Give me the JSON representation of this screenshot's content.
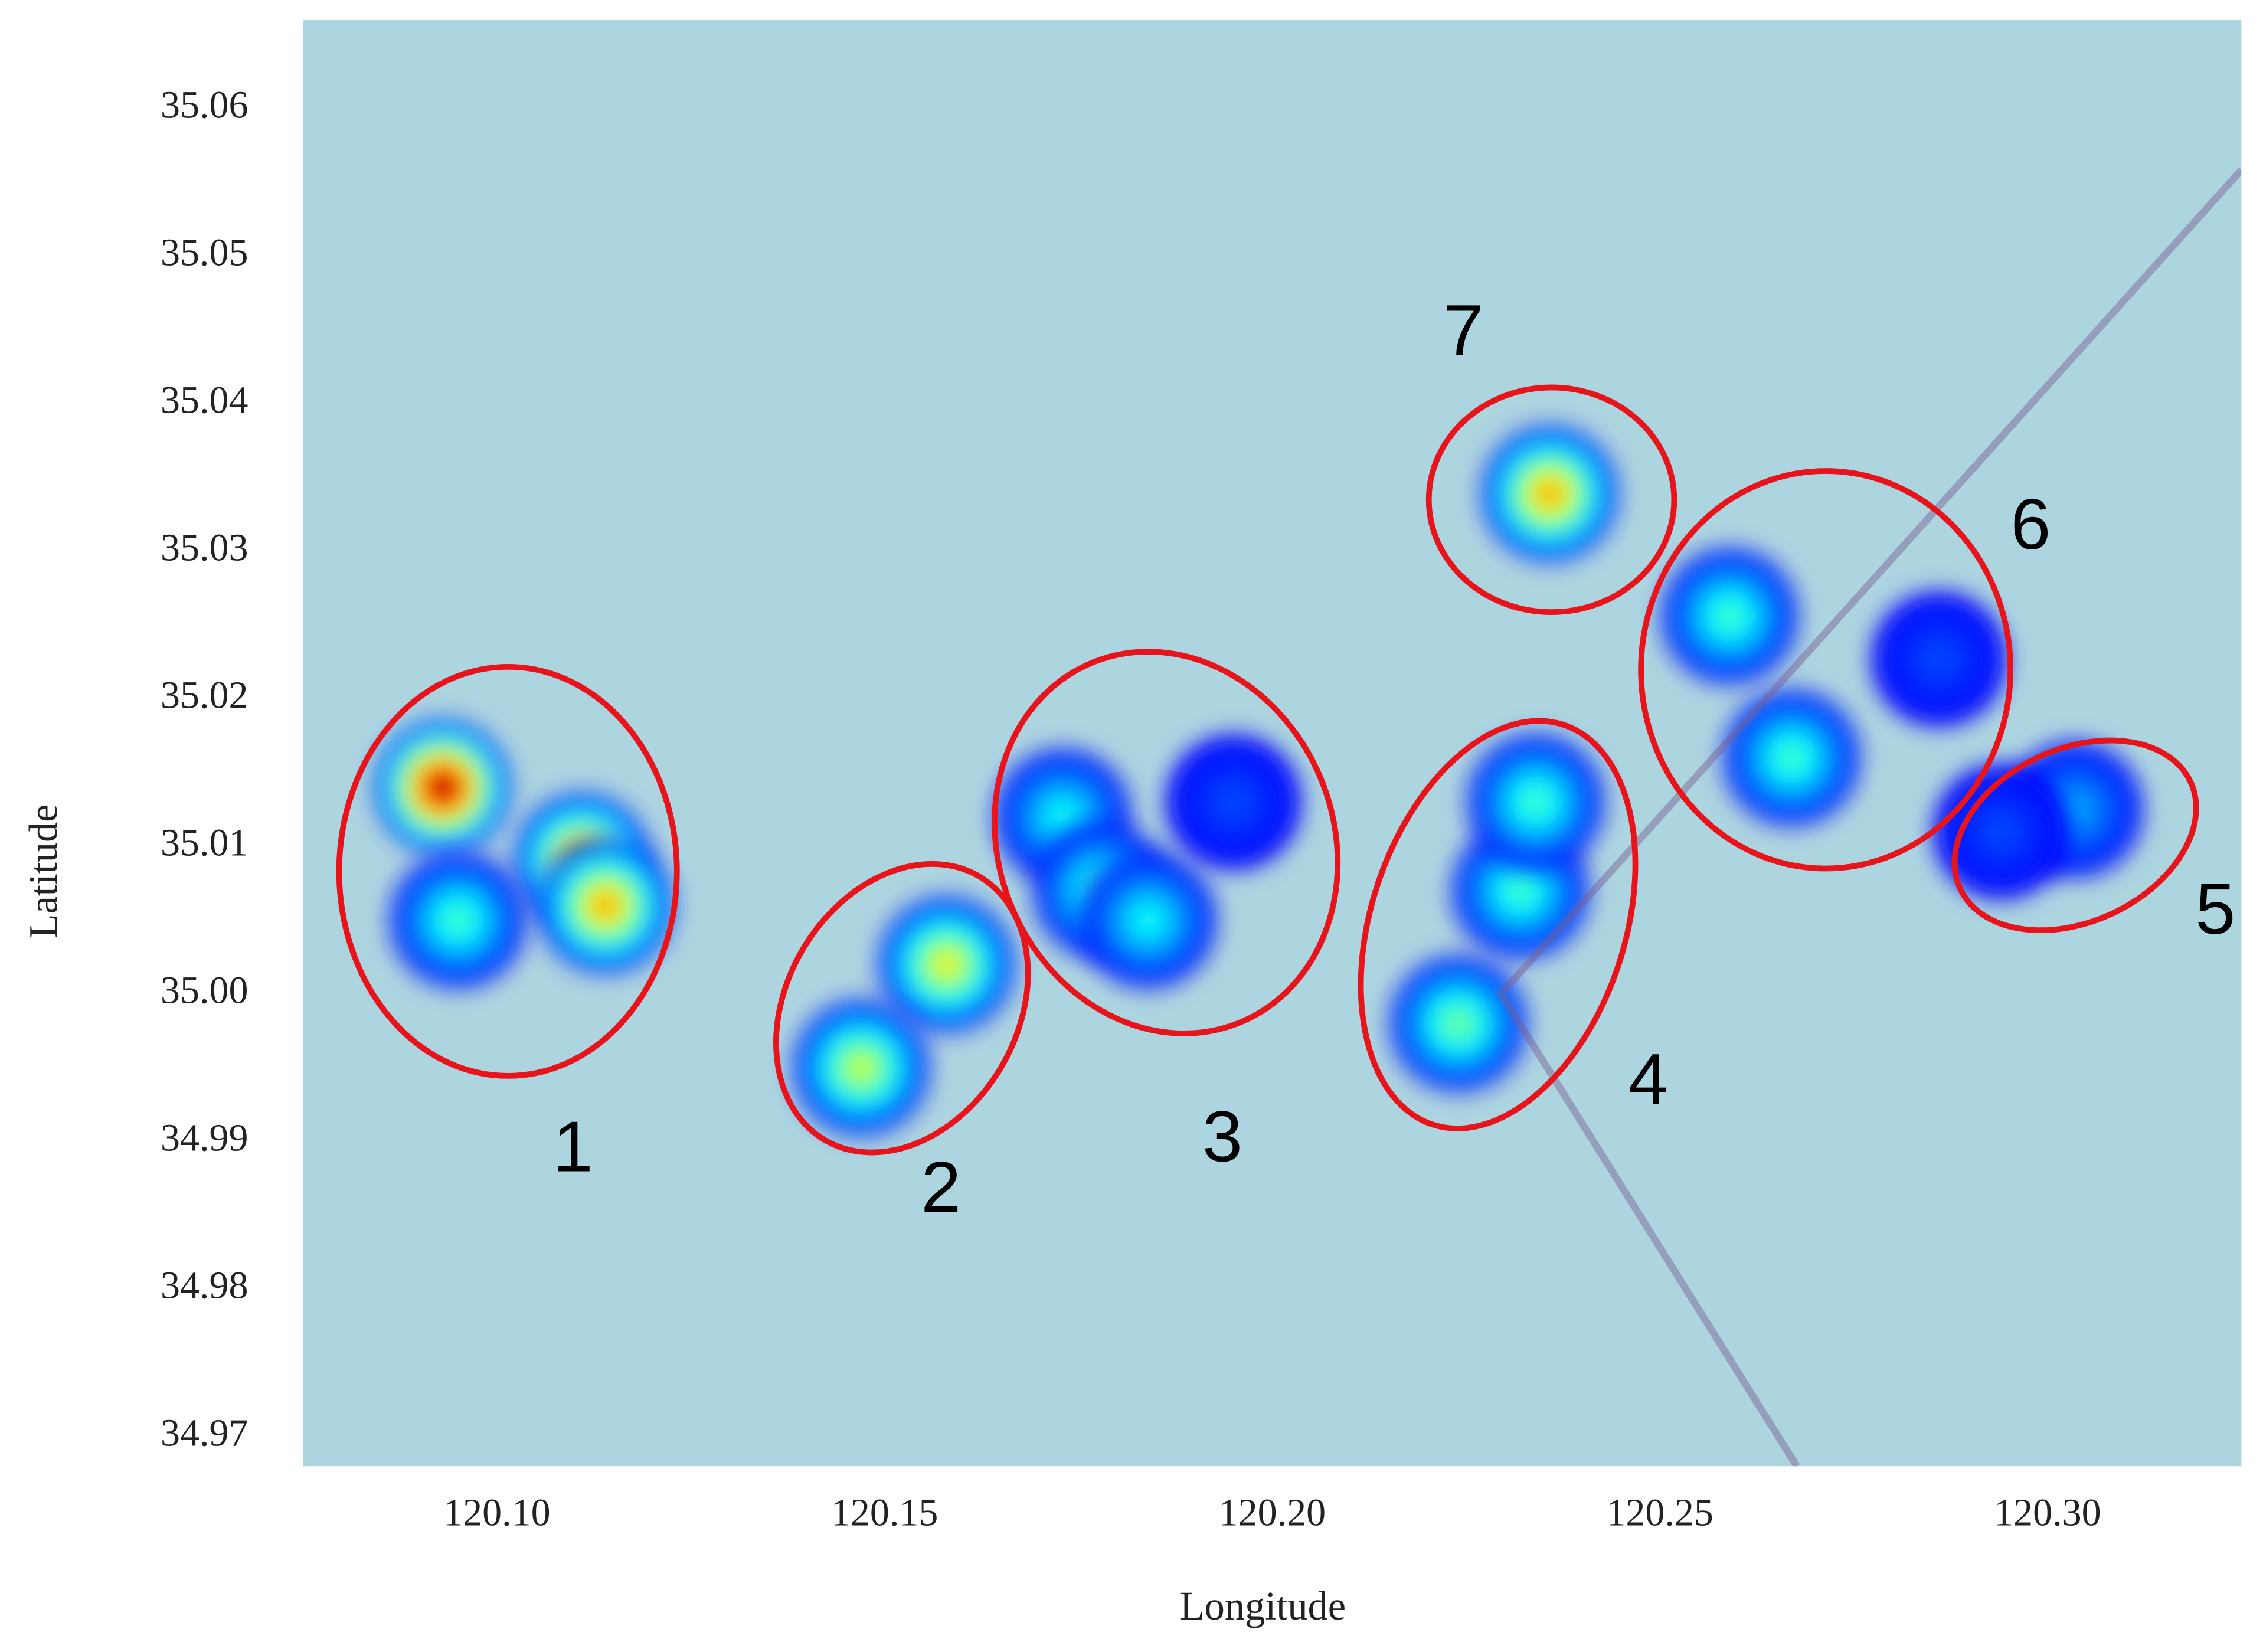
{
  "chart_data": {
    "type": "heatmap",
    "xlabel": "Longitude",
    "ylabel": "Latitude",
    "xlim": [
      120.075,
      120.325
    ],
    "ylim": [
      34.968,
      35.066
    ],
    "xticks": [
      {
        "value": 120.1,
        "label": "120.10"
      },
      120.15,
      {
        "value": 120.2,
        "label": "120.20"
      },
      120.25,
      {
        "value": 120.3,
        "label": "120.30"
      }
    ],
    "yticks": [
      35.06,
      35.05,
      35.04,
      35.03,
      35.02,
      35.01,
      {
        "value": 35.0,
        "label": "35.00"
      },
      34.99,
      34.98,
      34.97
    ],
    "background": "#acd5e0",
    "x": [
      120.093,
      120.111,
      120.114,
      120.095,
      120.158,
      120.147,
      120.173,
      120.178,
      120.184,
      120.195,
      120.224,
      120.232,
      120.234,
      120.3035,
      120.294,
      120.259,
      120.267,
      120.286,
      120.2358
    ],
    "y": [
      35.014,
      35.009,
      35.006,
      35.005,
      35.002,
      34.995,
      35.012,
      35.007,
      35.005,
      35.013,
      34.998,
      35.007,
      35.013,
      35.0125,
      35.011,
      35.0256,
      35.016,
      35.0227,
      35.0339
    ],
    "values": [
      1.0,
      0.8,
      0.75,
      0.45,
      0.65,
      0.6,
      0.4,
      0.45,
      0.4,
      0.2,
      0.5,
      0.45,
      0.45,
      0.3,
      0.2,
      0.45,
      0.45,
      0.2,
      0.75
    ],
    "annotations": [
      "1",
      "2",
      "3",
      "4",
      "5",
      "6",
      "7"
    ]
  }
}
